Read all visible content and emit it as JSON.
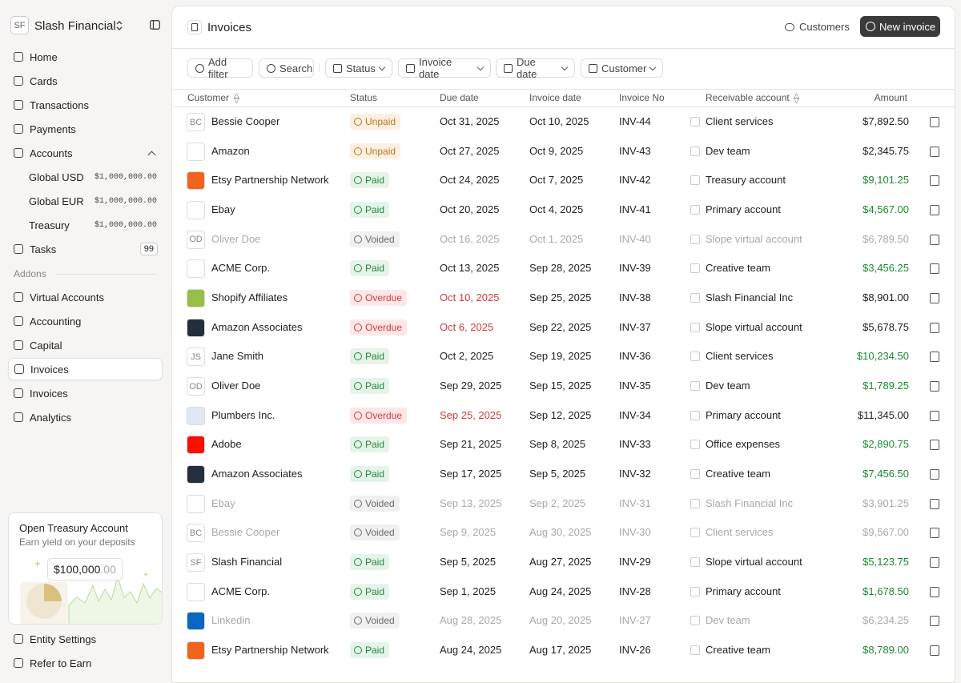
{
  "sidebar": {
    "org_initials": "SF",
    "org_name": "Slash Financial",
    "nav": [
      "Home",
      "Cards",
      "Transactions",
      "Payments",
      "Accounts"
    ],
    "accounts": [
      {
        "label": "Global USD",
        "amount": "$1,000,000.00"
      },
      {
        "label": "Global EUR",
        "amount": "$1,000,000.00"
      },
      {
        "label": "Treasury",
        "amount": "$1,000,000.00"
      }
    ],
    "tasks": {
      "label": "Tasks",
      "badge": 99
    },
    "addons_title": "Addons",
    "addons": [
      "Virtual Accounts",
      "Accounting",
      "Capital",
      "Invoices",
      "Invoices",
      "Analytics"
    ],
    "promo": {
      "title": "Open Treasury Account",
      "subtitle": "Earn yield on your deposits",
      "amount": "$100,000",
      "cents": ".00"
    },
    "footer": [
      "Entity Settings",
      "Refer to Earn"
    ]
  },
  "header": {
    "title": "Invoices",
    "customers": "Customers",
    "new_invoice": "New invoice"
  },
  "filters": [
    "Add filter",
    "Search",
    "Status",
    "Invoice date",
    "Due date",
    "Customer"
  ],
  "table": {
    "columns": [
      "Customer",
      "Status",
      "Due date",
      "Invoice date",
      "Invoice No",
      "Receivable account",
      "Amount"
    ],
    "status_colors": {
      "Unpaid": {
        "fg": "#b7791f",
        "bg": "#fdf0e1",
        "row": "#1f1f1f",
        "due": "#1f1f1f",
        "amount": "#1f1f1f"
      },
      "Paid": {
        "fg": "#23883a",
        "bg": "#e5f4e8",
        "row": "#1f1f1f",
        "due": "#1f1f1f",
        "amount": "#1a8a2e"
      },
      "Voided": {
        "fg": "#6b6b6b",
        "bg": "#f0f0f0",
        "row": "#a8a8a8",
        "due": "#a8a8a8",
        "amount": "#a8a8a8"
      },
      "Overdue": {
        "fg": "#d63b3b",
        "bg": "#fde7e7",
        "row": "#1f1f1f",
        "due": "#d63b3b",
        "amount": "#1f1f1f"
      }
    },
    "rows": [
      {
        "avatar": "BC",
        "customer": "Bessie Cooper",
        "status": "Unpaid",
        "due": "Oct 31, 2025",
        "invoice_date": "Oct 10, 2025",
        "no": "INV-44",
        "account": "Client services",
        "amount": "$7,892.50"
      },
      {
        "logo": "#ffffff",
        "customer": "Amazon",
        "status": "Unpaid",
        "due": "Oct 27, 2025",
        "invoice_date": "Oct 9, 2025",
        "no": "INV-43",
        "account": "Dev team",
        "amount": "$2,345.75"
      },
      {
        "logo": "#f1641e",
        "customer": "Etsy Partnership Network",
        "status": "Paid",
        "due": "Oct 24, 2025",
        "invoice_date": "Oct 7, 2025",
        "no": "INV-42",
        "account": "Treasury account",
        "amount": "$9,101.25"
      },
      {
        "logo": "#ffffff",
        "customer": "Ebay",
        "status": "Paid",
        "due": "Oct 20, 2025",
        "invoice_date": "Oct 4, 2025",
        "no": "INV-41",
        "account": "Primary account",
        "amount": "$4,567.00"
      },
      {
        "avatar": "OD",
        "customer": "Oliver Doe",
        "status": "Voided",
        "due": "Oct 16, 2025",
        "invoice_date": "Oct 1, 2025",
        "no": "INV-40",
        "account": "Slope virtual account",
        "amount": "$6,789.50"
      },
      {
        "logo": "#ffffff",
        "customer": "ACME Corp.",
        "status": "Paid",
        "due": "Oct 13, 2025",
        "invoice_date": "Sep 28, 2025",
        "no": "INV-39",
        "account": "Creative team",
        "amount": "$3,456.25"
      },
      {
        "logo": "#95bf47",
        "customer": "Shopify Affiliates",
        "status": "Overdue",
        "due": "Oct 10, 2025",
        "invoice_date": "Sep 25, 2025",
        "no": "INV-38",
        "account": "Slash Financial Inc",
        "amount": "$8,901.00"
      },
      {
        "logo": "#232f3e",
        "customer": "Amazon Associates",
        "status": "Overdue",
        "due": "Oct 6, 2025",
        "invoice_date": "Sep 22, 2025",
        "no": "INV-37",
        "account": "Slope virtual account",
        "amount": "$5,678.75"
      },
      {
        "avatar": "JS",
        "customer": "Jane Smith",
        "status": "Paid",
        "due": "Oct 2, 2025",
        "invoice_date": "Sep 19, 2025",
        "no": "INV-36",
        "account": "Client services",
        "amount": "$10,234.50"
      },
      {
        "avatar": "OD",
        "customer": "Oliver Doe",
        "status": "Paid",
        "due": "Sep 29, 2025",
        "invoice_date": "Sep 15, 2025",
        "no": "INV-35",
        "account": "Dev team",
        "amount": "$1,789.25"
      },
      {
        "logo": "#dfe8f3",
        "customer": "Plumbers Inc.",
        "status": "Overdue",
        "due": "Sep 25, 2025",
        "invoice_date": "Sep 12, 2025",
        "no": "INV-34",
        "account": "Primary account",
        "amount": "$11,345.00"
      },
      {
        "logo": "#fa0f00",
        "customer": "Adobe",
        "status": "Paid",
        "due": "Sep 21, 2025",
        "invoice_date": "Sep 8, 2025",
        "no": "INV-33",
        "account": "Office expenses",
        "amount": "$2,890.75"
      },
      {
        "logo": "#232f3e",
        "customer": "Amazon Associates",
        "status": "Paid",
        "due": "Sep 17, 2025",
        "invoice_date": "Sep 5, 2025",
        "no": "INV-32",
        "account": "Creative team",
        "amount": "$7,456.50"
      },
      {
        "logo": "#ffffff",
        "customer": "Ebay",
        "status": "Voided",
        "due": "Sep 13, 2025",
        "invoice_date": "Sep 2, 2025",
        "no": "INV-31",
        "account": "Slash Financial Inc",
        "amount": "$3,901.25"
      },
      {
        "avatar": "BC",
        "customer": "Bessie Cooper",
        "status": "Voided",
        "due": "Sep 9, 2025",
        "invoice_date": "Aug 30, 2025",
        "no": "INV-30",
        "account": "Client services",
        "amount": "$9,567.00"
      },
      {
        "avatar": "SF",
        "customer": "Slash Financial",
        "status": "Paid",
        "due": "Sep 5, 2025",
        "invoice_date": "Aug 27, 2025",
        "no": "INV-29",
        "account": "Slope virtual account",
        "amount": "$5,123.75"
      },
      {
        "logo": "#ffffff",
        "customer": "ACME Corp.",
        "status": "Paid",
        "due": "Sep 1, 2025",
        "invoice_date": "Aug 24, 2025",
        "no": "INV-28",
        "account": "Primary account",
        "amount": "$1,678.50"
      },
      {
        "logo": "#0a66c2",
        "customer": "Linkedin",
        "status": "Voided",
        "due": "Aug 28, 2025",
        "invoice_date": "Aug 20, 2025",
        "no": "INV-27",
        "account": "Dev team",
        "amount": "$6,234.25"
      },
      {
        "logo": "#f1641e",
        "customer": "Etsy Partnership Network",
        "status": "Paid",
        "due": "Aug 24, 2025",
        "invoice_date": "Aug 17, 2025",
        "no": "INV-26",
        "account": "Creative team",
        "amount": "$8,789.00"
      }
    ]
  }
}
